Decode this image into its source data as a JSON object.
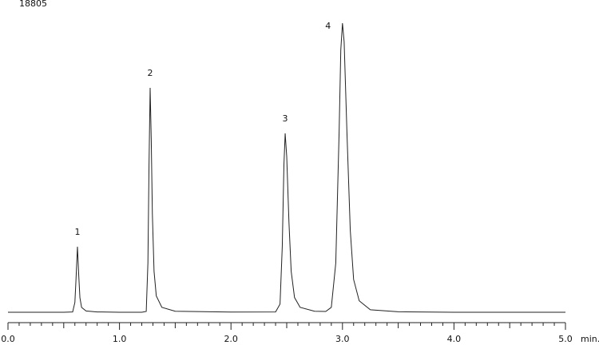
{
  "chart_data": {
    "type": "line",
    "x_label": "min.",
    "peak_labels": [
      "1",
      "2",
      "3",
      "4"
    ],
    "x": [
      0.0,
      0.5,
      0.58,
      0.6,
      0.61,
      0.623,
      0.635,
      0.645,
      0.66,
      0.7,
      0.8,
      1.0,
      1.2,
      1.24,
      1.255,
      1.265,
      1.275,
      1.285,
      1.295,
      1.31,
      1.33,
      1.38,
      1.5,
      2.0,
      2.4,
      2.44,
      2.46,
      2.475,
      2.486,
      2.5,
      2.52,
      2.54,
      2.57,
      2.62,
      2.75,
      2.85,
      2.9,
      2.94,
      2.97,
      2.985,
      3.0,
      3.015,
      3.04,
      3.07,
      3.1,
      3.15,
      3.25,
      3.5,
      4.0,
      5.0
    ],
    "series": [
      {
        "color": "#222222",
        "values": [
          0,
          0,
          20,
          600,
          2000,
          4000,
          2200,
          900,
          300,
          80,
          20,
          0,
          0,
          50,
          3000,
          9000,
          13690,
          10500,
          6000,
          2500,
          1000,
          300,
          60,
          10,
          20,
          500,
          4000,
          9000,
          10910,
          9500,
          5500,
          2500,
          900,
          300,
          60,
          50,
          300,
          3000,
          11000,
          16000,
          17635,
          16500,
          11000,
          5000,
          2000,
          700,
          150,
          30,
          0,
          0
        ]
      }
    ],
    "xlim": [
      0,
      5
    ],
    "xticks": [
      {
        "value": 0,
        "label": "0.0"
      },
      {
        "value": 1,
        "label": "1.0"
      },
      {
        "value": 2,
        "label": "2.0"
      },
      {
        "value": 3,
        "label": "3.0"
      },
      {
        "value": 4,
        "label": "4.0"
      },
      {
        "value": 5,
        "label": "5.0"
      }
    ],
    "xminor_ticks": [
      0.1,
      0.2,
      0.3,
      0.4,
      0.5,
      0.6,
      0.7,
      0.8,
      0.9,
      1.1,
      1.2,
      1.3,
      1.4,
      1.5,
      1.6,
      1.7,
      1.8,
      1.9,
      2.1,
      2.2,
      2.3,
      2.4,
      2.5,
      2.6,
      2.7,
      2.8,
      2.9,
      3.1,
      3.2,
      3.3,
      3.4,
      3.5,
      3.6,
      3.7,
      3.8,
      3.9,
      4.1,
      4.2,
      4.3,
      4.4,
      4.5,
      4.6,
      4.7,
      4.8,
      4.9
    ],
    "ylim": [
      0,
      18805
    ],
    "yticks": [
      18805
    ]
  }
}
